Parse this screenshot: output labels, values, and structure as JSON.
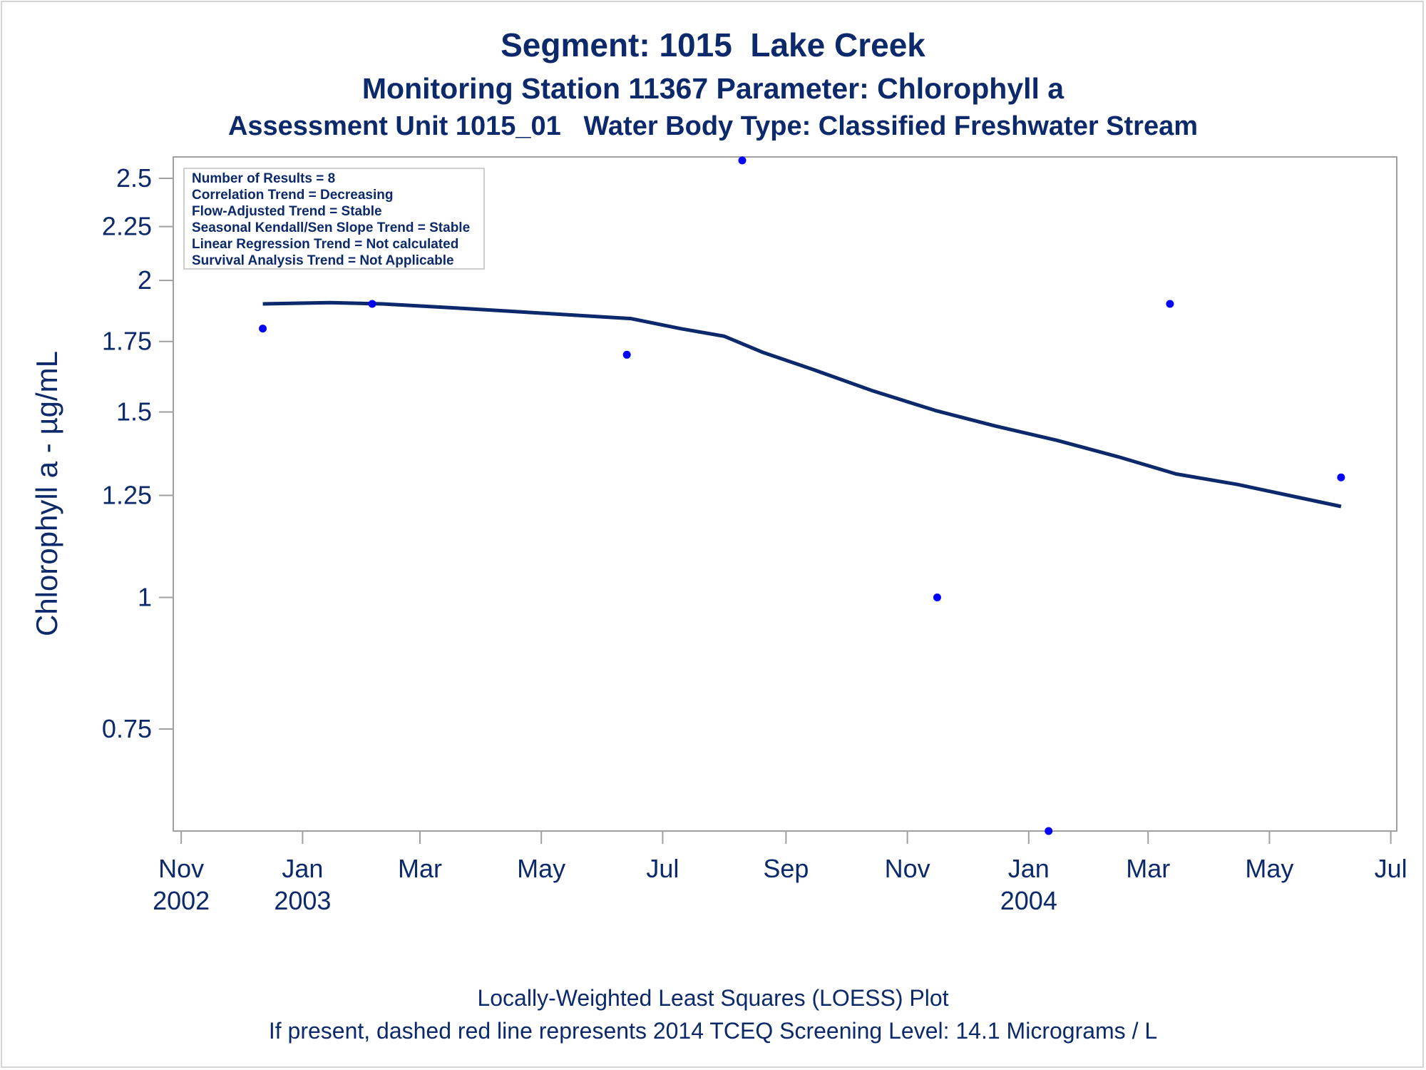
{
  "titles": {
    "line1": "Segment: 1015  Lake Creek",
    "line2": "Monitoring Station 11367 Parameter: Chlorophyll a",
    "line3": "Assessment Unit 1015_01   Water Body Type: Classified Freshwater Stream"
  },
  "footnotes": {
    "line1": "Locally-Weighted Least Squares (LOESS) Plot",
    "line2": "If present, dashed red line represents 2014 TCEQ Screening Level: 14.1 Micrograms / L"
  },
  "chart_data": {
    "type": "scatter",
    "ylabel": "Chlorophyll a -  µg/mL",
    "y_scale": "log",
    "ylim": [
      0.6,
      2.62
    ],
    "xlim": [
      "2002-10-28",
      "2004-07-04"
    ],
    "grid": false,
    "y_ticks": [
      {
        "value": 0.75,
        "label": "0.75"
      },
      {
        "value": 1,
        "label": "1"
      },
      {
        "value": 1.25,
        "label": "1.25"
      },
      {
        "value": 1.5,
        "label": "1.5"
      },
      {
        "value": 1.75,
        "label": "1.75"
      },
      {
        "value": 2,
        "label": "2"
      },
      {
        "value": 2.25,
        "label": "2.25"
      },
      {
        "value": 2.5,
        "label": "2.5"
      }
    ],
    "x_ticks": [
      {
        "date": "2002-11-01",
        "month": "Nov",
        "year": "2002"
      },
      {
        "date": "2003-01-01",
        "month": "Jan",
        "year": "2003"
      },
      {
        "date": "2003-03-01",
        "month": "Mar",
        "year": ""
      },
      {
        "date": "2003-05-01",
        "month": "May",
        "year": ""
      },
      {
        "date": "2003-07-01",
        "month": "Jul",
        "year": ""
      },
      {
        "date": "2003-09-01",
        "month": "Sep",
        "year": ""
      },
      {
        "date": "2003-11-01",
        "month": "Nov",
        "year": ""
      },
      {
        "date": "2004-01-01",
        "month": "Jan",
        "year": "2004"
      },
      {
        "date": "2004-03-01",
        "month": "Mar",
        "year": ""
      },
      {
        "date": "2004-05-01",
        "month": "May",
        "year": ""
      },
      {
        "date": "2004-07-01",
        "month": "Jul",
        "year": ""
      }
    ],
    "points": [
      {
        "date": "2002-12-12",
        "value": 1.8
      },
      {
        "date": "2003-02-05",
        "value": 1.9
      },
      {
        "date": "2003-06-13",
        "value": 1.7
      },
      {
        "date": "2003-08-10",
        "value": 2.6
      },
      {
        "date": "2003-11-16",
        "value": 1.0
      },
      {
        "date": "2004-01-11",
        "value": 0.6
      },
      {
        "date": "2004-03-12",
        "value": 1.9
      },
      {
        "date": "2004-06-06",
        "value": 1.3
      }
    ],
    "loess": [
      {
        "date": "2002-12-12",
        "value": 1.9
      },
      {
        "date": "2003-01-15",
        "value": 1.905
      },
      {
        "date": "2003-02-10",
        "value": 1.9
      },
      {
        "date": "2003-03-15",
        "value": 1.885
      },
      {
        "date": "2003-04-15",
        "value": 1.87
      },
      {
        "date": "2003-05-15",
        "value": 1.855
      },
      {
        "date": "2003-06-15",
        "value": 1.84
      },
      {
        "date": "2003-07-10",
        "value": 1.8
      },
      {
        "date": "2003-08-01",
        "value": 1.77
      },
      {
        "date": "2003-08-20",
        "value": 1.71
      },
      {
        "date": "2003-09-15",
        "value": 1.645
      },
      {
        "date": "2003-10-15",
        "value": 1.57
      },
      {
        "date": "2003-11-15",
        "value": 1.505
      },
      {
        "date": "2003-12-15",
        "value": 1.455
      },
      {
        "date": "2004-01-15",
        "value": 1.41
      },
      {
        "date": "2004-02-15",
        "value": 1.36
      },
      {
        "date": "2004-03-15",
        "value": 1.31
      },
      {
        "date": "2004-04-15",
        "value": 1.28
      },
      {
        "date": "2004-05-15",
        "value": 1.245
      },
      {
        "date": "2004-06-06",
        "value": 1.22
      }
    ],
    "legend_position": "top-left",
    "legend_lines": [
      "Number of Results = 8",
      "Correlation Trend = Decreasing",
      "Flow-Adjusted Trend = Stable",
      "Seasonal Kendall/Sen Slope Trend = Stable",
      "Linear Regression Trend = Not calculated",
      "Survival Analysis Trend = Not Applicable"
    ],
    "colors": {
      "points": "#0000ff",
      "line": "#0c2a6b",
      "axis": "#a0a0a0",
      "text": "#0c2a6b"
    }
  }
}
